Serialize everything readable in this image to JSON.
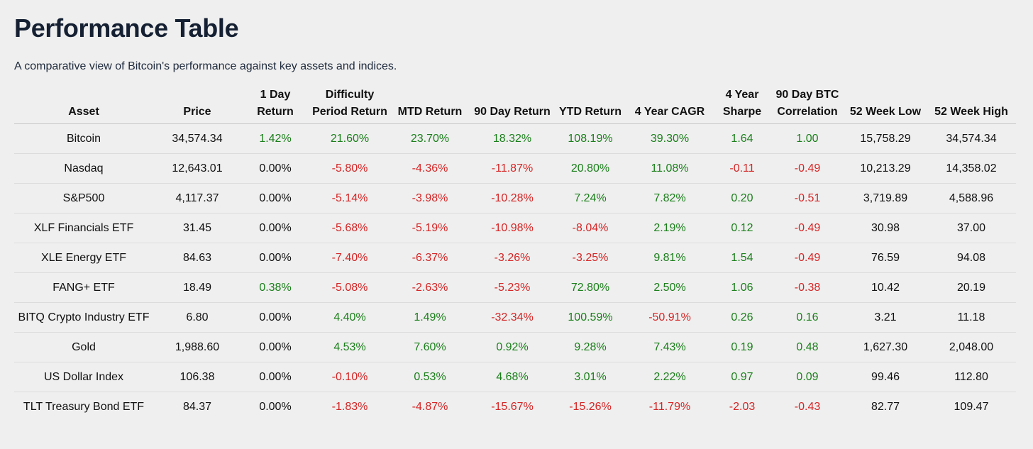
{
  "title": "Performance Table",
  "subtitle": "A comparative view of Bitcoin's performance against key assets and indices.",
  "colors": {
    "positive": "#1a7f1a",
    "negative": "#d62424"
  },
  "table": {
    "columns": [
      "Asset",
      "Price",
      "1 Day Return",
      "Difficulty Period Return",
      "MTD Return",
      "90 Day Return",
      "YTD Return",
      "4 Year CAGR",
      "4 Year Sharpe",
      "90 Day BTC Correlation",
      "52 Week Low",
      "52 Week High"
    ],
    "rows": [
      [
        "Bitcoin",
        "34,574.34",
        "1.42%",
        "21.60%",
        "23.70%",
        "18.32%",
        "108.19%",
        "39.30%",
        "1.64",
        "1.00",
        "15,758.29",
        "34,574.34"
      ],
      [
        "Nasdaq",
        "12,643.01",
        "0.00%",
        "-5.80%",
        "-4.36%",
        "-11.87%",
        "20.80%",
        "11.08%",
        "-0.11",
        "-0.49",
        "10,213.29",
        "14,358.02"
      ],
      [
        "S&P500",
        "4,117.37",
        "0.00%",
        "-5.14%",
        "-3.98%",
        "-10.28%",
        "7.24%",
        "7.82%",
        "0.20",
        "-0.51",
        "3,719.89",
        "4,588.96"
      ],
      [
        "XLF Financials ETF",
        "31.45",
        "0.00%",
        "-5.68%",
        "-5.19%",
        "-10.98%",
        "-8.04%",
        "2.19%",
        "0.12",
        "-0.49",
        "30.98",
        "37.00"
      ],
      [
        "XLE Energy ETF",
        "84.63",
        "0.00%",
        "-7.40%",
        "-6.37%",
        "-3.26%",
        "-3.25%",
        "9.81%",
        "1.54",
        "-0.49",
        "76.59",
        "94.08"
      ],
      [
        "FANG+ ETF",
        "18.49",
        "0.38%",
        "-5.08%",
        "-2.63%",
        "-5.23%",
        "72.80%",
        "2.50%",
        "1.06",
        "-0.38",
        "10.42",
        "20.19"
      ],
      [
        "BITQ Crypto Industry ETF",
        "6.80",
        "0.00%",
        "4.40%",
        "1.49%",
        "-32.34%",
        "100.59%",
        "-50.91%",
        "0.26",
        "0.16",
        "3.21",
        "11.18"
      ],
      [
        "Gold",
        "1,988.60",
        "0.00%",
        "4.53%",
        "7.60%",
        "0.92%",
        "9.28%",
        "7.43%",
        "0.19",
        "0.48",
        "1,627.30",
        "2,048.00"
      ],
      [
        "US Dollar Index",
        "106.38",
        "0.00%",
        "-0.10%",
        "0.53%",
        "4.68%",
        "3.01%",
        "2.22%",
        "0.97",
        "0.09",
        "99.46",
        "112.80"
      ],
      [
        "TLT Treasury Bond ETF",
        "84.37",
        "0.00%",
        "-1.83%",
        "-4.87%",
        "-15.67%",
        "-15.26%",
        "-11.79%",
        "-2.03",
        "-0.43",
        "82.77",
        "109.47"
      ]
    ]
  }
}
